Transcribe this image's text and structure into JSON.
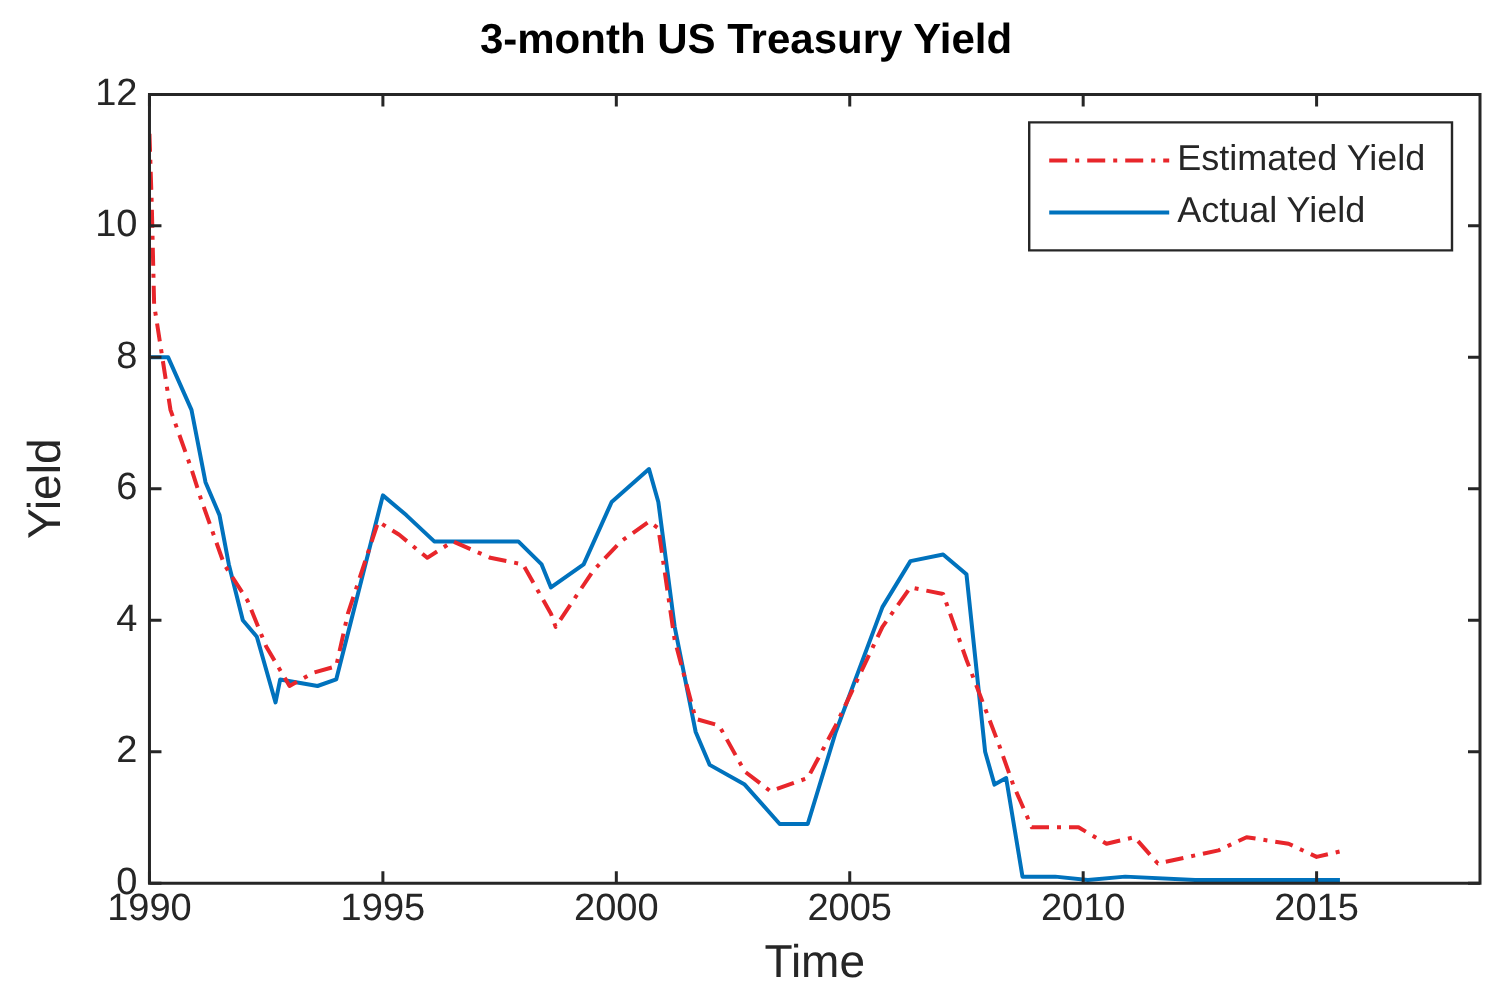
{
  "chart_data": {
    "type": "line",
    "title": "3-month US Treasury Yield",
    "xlabel": "Time",
    "ylabel": "Yield",
    "xlim": [
      1990,
      2018.5
    ],
    "xticks": [
      1990,
      1995,
      2000,
      2005,
      2010,
      2015
    ],
    "ylim": [
      0,
      12
    ],
    "yticks": [
      0,
      2,
      4,
      6,
      8,
      10,
      12
    ],
    "grid": false,
    "legend": "top right",
    "marker": "none",
    "series": [
      {
        "name": "Estimated Yield",
        "color": "#e8262b",
        "line_style": "dashed",
        "x": [
          1990,
          1990.05,
          1990.1,
          1990.45,
          1990.9,
          1991.1,
          1991.6,
          1992.1,
          1992.5,
          1992.75,
          1993.0,
          1993.5,
          1994.0,
          1994.25,
          1994.9,
          1995.35,
          1995.95,
          1996.5,
          1997.3,
          1998.0,
          1998.6,
          1998.7,
          1999.5,
          2000.1,
          2000.7,
          2000.9,
          2001.25,
          2001.7,
          2002.2,
          2002.75,
          2003.3,
          2004.1,
          2004.7,
          2005.7,
          2006.3,
          2007.0,
          2007.5,
          2008.2,
          2008.5,
          2008.9,
          2009.9,
          2010.5,
          2011.1,
          2011.6,
          2012.9,
          2013.5,
          2014.4,
          2015.0,
          2015.6
        ],
        "values": [
          11.4,
          10.3,
          8.8,
          7.2,
          6.3,
          5.85,
          4.85,
          4.3,
          3.6,
          3.3,
          3.0,
          3.2,
          3.3,
          4.1,
          5.5,
          5.3,
          4.95,
          5.2,
          4.95,
          4.85,
          4.1,
          3.9,
          4.75,
          5.2,
          5.5,
          5.4,
          3.7,
          2.5,
          2.4,
          1.7,
          1.4,
          1.6,
          2.4,
          3.9,
          4.5,
          4.4,
          3.4,
          2.1,
          1.5,
          0.85,
          0.85,
          0.6,
          0.7,
          0.3,
          0.5,
          0.7,
          0.6,
          0.4,
          0.5
        ]
      },
      {
        "name": "Actual Yield",
        "color": "#0072bd",
        "line_style": "solid",
        "x": [
          1990,
          1990.4,
          1990.9,
          1991.2,
          1991.5,
          1991.7,
          1992.0,
          1992.3,
          1992.7,
          1992.8,
          1993.6,
          1994.0,
          1994.5,
          1995.0,
          1995.5,
          1996.1,
          1997.1,
          1997.9,
          1998.4,
          1998.6,
          1999.3,
          1999.9,
          2000.7,
          2000.9,
          2001.25,
          2001.7,
          2002.0,
          2002.75,
          2003.5,
          2004.1,
          2004.7,
          2005.7,
          2006.3,
          2007.0,
          2007.5,
          2007.9,
          2008.1,
          2008.35,
          2008.7,
          2009.4,
          2010.1,
          2010.9,
          2012.4,
          2015.5
        ],
        "values": [
          8.0,
          8.0,
          7.2,
          6.1,
          5.6,
          4.85,
          4.0,
          3.75,
          2.75,
          3.1,
          3.0,
          3.1,
          4.5,
          5.9,
          5.6,
          5.2,
          5.2,
          5.2,
          4.85,
          4.5,
          4.85,
          5.8,
          6.3,
          5.8,
          3.9,
          2.3,
          1.8,
          1.5,
          0.9,
          0.9,
          2.3,
          4.2,
          4.9,
          5.0,
          4.7,
          2.0,
          1.5,
          1.6,
          0.1,
          0.1,
          0.05,
          0.1,
          0.05,
          0.05
        ]
      }
    ]
  }
}
